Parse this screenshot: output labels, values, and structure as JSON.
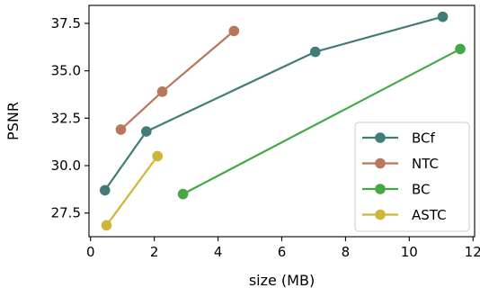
{
  "chart_data": {
    "type": "line",
    "xlabel": "size (MB)",
    "ylabel": "PSNR",
    "xlim": [
      -0.05,
      12.05
    ],
    "ylim": [
      26.25,
      38.45
    ],
    "xticks": [
      0,
      2,
      4,
      6,
      8,
      10,
      12
    ],
    "yticks": [
      27.5,
      30.0,
      32.5,
      35.0,
      37.5
    ],
    "xtick_labels": [
      "0",
      "2",
      "4",
      "6",
      "8",
      "10",
      "12"
    ],
    "ytick_labels": [
      "27.5",
      "30.0",
      "32.5",
      "35.0",
      "37.5"
    ],
    "grid": false,
    "legend_position": "lower right",
    "series": [
      {
        "name": "BCf",
        "color": "#417d76",
        "x": [
          0.45,
          1.75,
          7.05,
          11.05
        ],
        "y": [
          28.7,
          31.8,
          36.0,
          37.85
        ]
      },
      {
        "name": "NTC",
        "color": "#b8775a",
        "x": [
          0.95,
          2.25,
          4.5
        ],
        "y": [
          31.9,
          33.9,
          37.1
        ]
      },
      {
        "name": "BC",
        "color": "#44a847",
        "x": [
          2.9,
          11.6
        ],
        "y": [
          28.5,
          36.15
        ]
      },
      {
        "name": "ASTC",
        "color": "#cdb638",
        "x": [
          0.5,
          2.1
        ],
        "y": [
          26.85,
          30.5
        ]
      }
    ]
  }
}
